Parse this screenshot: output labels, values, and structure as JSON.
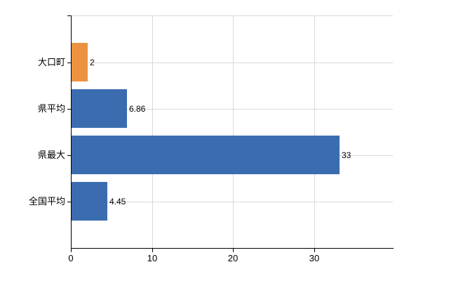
{
  "chart": {
    "background": "#ffffff",
    "axis_color": "#000000",
    "grid_color": "#d9d9d9",
    "text_color": "#000000"
  },
  "chart_data": {
    "type": "bar",
    "orientation": "horizontal",
    "categories": [
      "大口町",
      "県平均",
      "県最大",
      "全国平均"
    ],
    "values": [
      2,
      6.86,
      33,
      4.45
    ],
    "value_labels": [
      "2",
      "6.86",
      "33",
      "4.45"
    ],
    "series_colors": [
      "#ec9340",
      "#3b6cb0",
      "#3b6cb0",
      "#3b6cb0"
    ],
    "x_ticks": [
      0,
      10,
      20,
      30
    ],
    "x_tick_labels": [
      "0",
      "10",
      "20",
      "30"
    ],
    "xlim": [
      0,
      39.7
    ],
    "grid": true,
    "legend_position": "none"
  }
}
